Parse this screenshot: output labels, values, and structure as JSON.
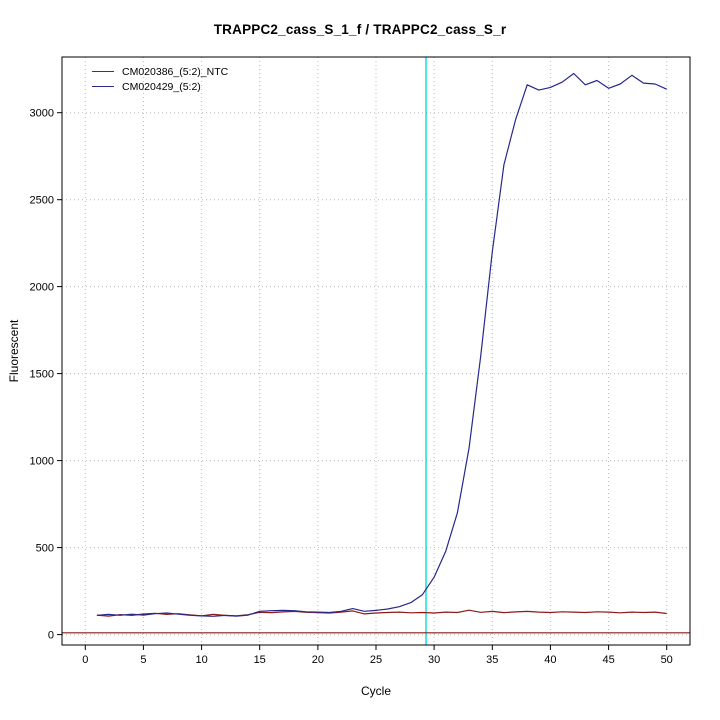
{
  "chart_data": {
    "type": "line",
    "title": "TRAPPC2_cass_S_1_f / TRAPPC2_cass_S_r",
    "xlabel": "Cycle",
    "ylabel": "Fluorescent",
    "xlim": [
      -2,
      52
    ],
    "ylim": [
      -60,
      3320
    ],
    "xticks": [
      0,
      5,
      10,
      15,
      20,
      25,
      30,
      35,
      40,
      45,
      50
    ],
    "yticks": [
      0,
      500,
      1000,
      1500,
      2000,
      2500,
      3000
    ],
    "grid": "dotted",
    "legend_position": "top-left",
    "threshold_vline": {
      "x": 29.3,
      "color": "#00dddd"
    },
    "baseline_hline": {
      "y": 10,
      "color": "#8b1a1a"
    },
    "x": [
      1,
      2,
      3,
      4,
      5,
      6,
      7,
      8,
      9,
      10,
      11,
      12,
      13,
      14,
      15,
      16,
      17,
      18,
      19,
      20,
      21,
      22,
      23,
      24,
      25,
      26,
      27,
      28,
      29,
      30,
      31,
      32,
      33,
      34,
      35,
      36,
      37,
      38,
      39,
      40,
      41,
      42,
      43,
      44,
      45,
      46,
      47,
      48,
      49,
      50
    ],
    "series": [
      {
        "name": "CM020386_(5:2)_NTC",
        "color": "#8b1a1a",
        "values": [
          112,
          106,
          115,
          110,
          118,
          122,
          116,
          120,
          113,
          108,
          116,
          110,
          107,
          114,
          128,
          126,
          130,
          133,
          128,
          126,
          124,
          129,
          136,
          119,
          124,
          127,
          129,
          125,
          127,
          124,
          129,
          127,
          140,
          128,
          133,
          126,
          130,
          133,
          129,
          127,
          131,
          129,
          127,
          131,
          129,
          125,
          129,
          127,
          129,
          121
        ]
      },
      {
        "name": "CM020429_(5:2)",
        "color": "#28288c",
        "values": [
          110,
          116,
          111,
          117,
          112,
          120,
          124,
          117,
          111,
          107,
          105,
          110,
          106,
          112,
          134,
          137,
          139,
          137,
          131,
          129,
          127,
          134,
          149,
          134,
          139,
          147,
          160,
          184,
          230,
          330,
          480,
          700,
          1070,
          1600,
          2200,
          2700,
          2960,
          3160,
          3130,
          3145,
          3175,
          3225,
          3160,
          3185,
          3140,
          3165,
          3215,
          3170,
          3165,
          3135
        ]
      }
    ]
  }
}
